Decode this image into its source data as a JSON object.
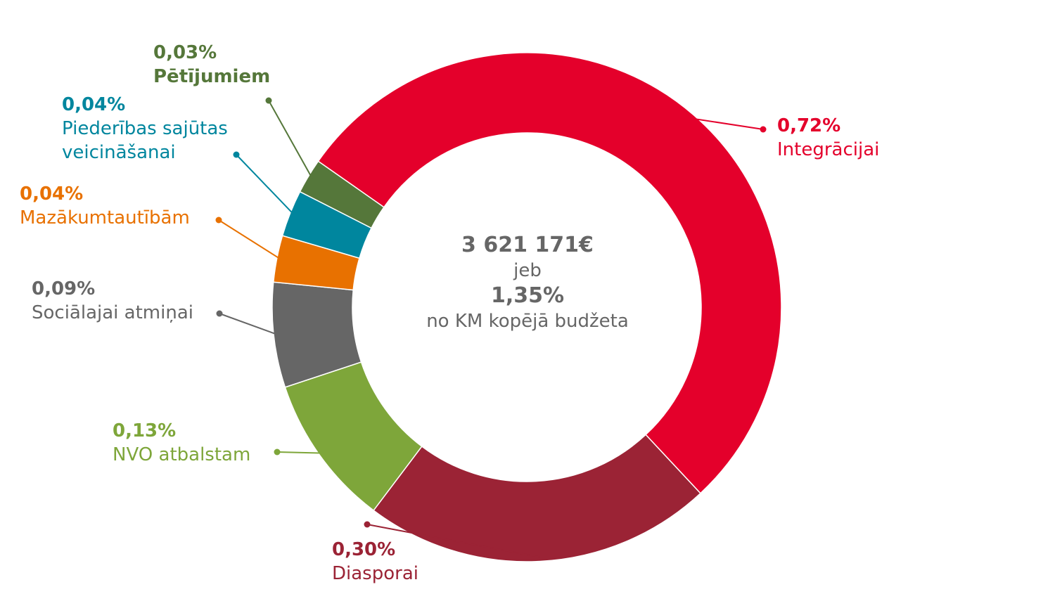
{
  "chart_data": {
    "type": "pie",
    "variant": "donut",
    "center": {
      "amount": "3 621 171€",
      "connector": "jeb",
      "share": "1,35%",
      "description": "no KM kopējā budžeta"
    },
    "slices": [
      {
        "label": "Integrācijai",
        "value": 0.72,
        "value_text": "0,72%",
        "color": "#e4002b"
      },
      {
        "label": "Diasporai",
        "value": 0.3,
        "value_text": "0,30%",
        "color": "#9b2335"
      },
      {
        "label": "NVO atbalstam",
        "value": 0.13,
        "value_text": "0,13%",
        "color": "#7ea63a"
      },
      {
        "label": "Sociālajai atmiņai",
        "value": 0.09,
        "value_text": "0,09%",
        "color": "#666666"
      },
      {
        "label": "Mazākumtautībām",
        "value": 0.04,
        "value_text": "0,04%",
        "color": "#e87100"
      },
      {
        "label": "Piederības sajūtas veicināšanai",
        "value": 0.04,
        "value_text": "0,04%",
        "color": "#00869e"
      },
      {
        "label": "Pētījumiem",
        "value": 0.03,
        "value_text": "0,03%",
        "color": "#55773a"
      }
    ]
  }
}
